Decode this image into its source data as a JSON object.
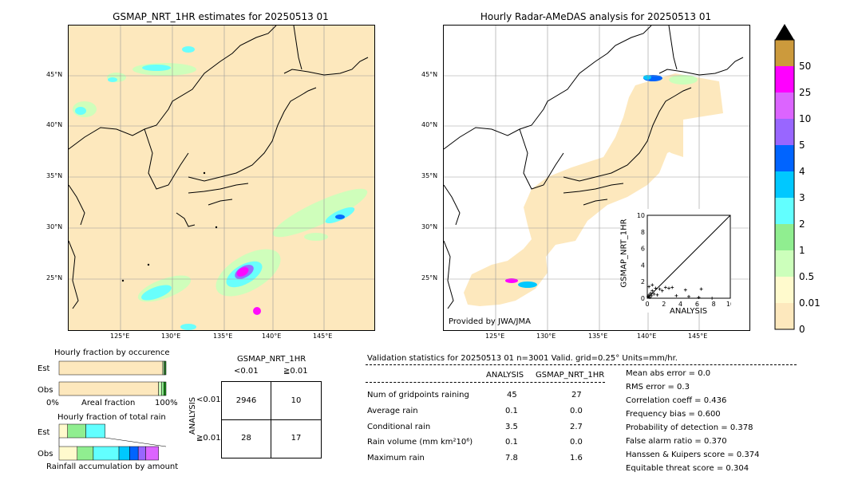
{
  "left_map": {
    "title": "GSMAP_NRT_1HR estimates for 20250513 01",
    "lat_labels": [
      "45°N",
      "40°N",
      "35°N",
      "30°N",
      "25°N"
    ],
    "lon_labels": [
      "125°E",
      "130°E",
      "135°E",
      "140°E",
      "145°E"
    ]
  },
  "right_map": {
    "title": "Hourly Radar-AMeDAS analysis for 20250513 01",
    "lat_labels": [
      "45°N",
      "40°N",
      "35°N",
      "30°N",
      "25°N"
    ],
    "lon_labels": [
      "125°E",
      "130°E",
      "135°E",
      "140°E",
      "145°E"
    ],
    "credit": "Provided by JWA/JMA"
  },
  "scatter": {
    "ylabel": "GSMAP_NRT_1HR",
    "xlabel": "ANALYSIS",
    "x_ticks": [
      "0",
      "2",
      "4",
      "6",
      "8",
      "10"
    ],
    "y_ticks": [
      "0",
      "2",
      "4",
      "6",
      "8",
      "10"
    ]
  },
  "colorbar": {
    "labels": [
      "0",
      "0.01",
      "0.5",
      "1",
      "2",
      "3",
      "4",
      "5",
      "10",
      "25",
      "50"
    ],
    "colors": [
      "#fde8bd",
      "#fffacd",
      "#ccffbb",
      "#90ee90",
      "#62ffff",
      "#00c8ff",
      "#0064ff",
      "#9966ff",
      "#dc64ff",
      "#ff00ff",
      "#cc9a3c"
    ]
  },
  "fraction_occurrence": {
    "title": "Hourly fraction by occurence",
    "row_labels": [
      "Est",
      "Obs"
    ],
    "axis_left": "0%",
    "axis_mid": "Areal fraction",
    "axis_right": "100%"
  },
  "fraction_total": {
    "title": "Hourly fraction of total rain",
    "row_labels": [
      "Est",
      "Obs"
    ],
    "footer": "Rainfall accumulation by amount"
  },
  "contingency": {
    "col_title": "GSMAP_NRT_1HR",
    "col_labels": [
      "<0.01",
      "≧0.01"
    ],
    "row_title": "ANALYSIS",
    "row_labels": [
      "<0.01",
      "≧0.01"
    ],
    "cells": [
      [
        "2946",
        "10"
      ],
      [
        "28",
        "17"
      ]
    ]
  },
  "validation": {
    "header": "Validation statistics for 20250513 01  n=3001 Valid. grid=0.25° Units=mm/hr.",
    "col_analysis": "ANALYSIS",
    "col_gsmap": "GSMAP_NRT_1HR",
    "rows": [
      {
        "label": "Num of gridpoints raining",
        "analysis": "45",
        "gsmap": "27"
      },
      {
        "label": "Average rain",
        "analysis": "0.1",
        "gsmap": "0.0"
      },
      {
        "label": "Conditional rain",
        "analysis": "3.5",
        "gsmap": "2.7"
      },
      {
        "label": "Rain volume (mm km²10⁶)",
        "analysis": "0.1",
        "gsmap": "0.0"
      },
      {
        "label": "Maximum rain",
        "analysis": "7.8",
        "gsmap": "1.6"
      }
    ],
    "scores": [
      "Mean abs error =    0.0",
      "RMS error =    0.3",
      "Correlation coeff =  0.436",
      "Frequency bias =  0.600",
      "Probability of detection =  0.378",
      "False alarm ratio =  0.370",
      "Hanssen & Kuipers score =  0.374",
      "Equitable threat score =  0.304"
    ]
  },
  "chart_data": [
    {
      "type": "table",
      "title": "Hourly fraction by occurence",
      "series": [
        {
          "name": "Est",
          "values": [
            0.97,
            0.01,
            0.01,
            0.01
          ]
        },
        {
          "name": "Obs",
          "values": [
            0.93,
            0.03,
            0.02,
            0.02
          ]
        }
      ]
    },
    {
      "type": "table",
      "title": "Hourly fraction of total rain",
      "series": [
        {
          "name": "Est",
          "values": [
            0.08,
            0.17,
            0.18,
            0.0,
            0.0,
            0.0,
            0.0
          ]
        },
        {
          "name": "Obs",
          "values": [
            0.17,
            0.15,
            0.24,
            0.1,
            0.08,
            0.07,
            0.12
          ]
        }
      ]
    },
    {
      "type": "scatter",
      "xlabel": "ANALYSIS",
      "ylabel": "GSMAP_NRT_1HR",
      "xlim": [
        0,
        10
      ],
      "ylim": [
        0,
        10
      ],
      "points": [
        [
          0.1,
          0.2
        ],
        [
          0.2,
          0.4
        ],
        [
          0.3,
          0.1
        ],
        [
          0.4,
          0.6
        ],
        [
          0.5,
          0.3
        ],
        [
          0.6,
          0.9
        ],
        [
          0.8,
          0.5
        ],
        [
          1.0,
          1.2
        ],
        [
          1.2,
          0.4
        ],
        [
          1.5,
          1.1
        ],
        [
          1.8,
          0.9
        ],
        [
          2.2,
          1.3
        ],
        [
          2.6,
          1.2
        ],
        [
          3.0,
          1.3
        ],
        [
          3.5,
          0.3
        ],
        [
          4.6,
          1.0
        ],
        [
          5.0,
          0.2
        ],
        [
          6.2,
          0.1
        ],
        [
          6.5,
          1.1
        ],
        [
          7.8,
          0.0
        ],
        [
          0.2,
          1.4
        ],
        [
          0.6,
          1.6
        ]
      ]
    }
  ]
}
